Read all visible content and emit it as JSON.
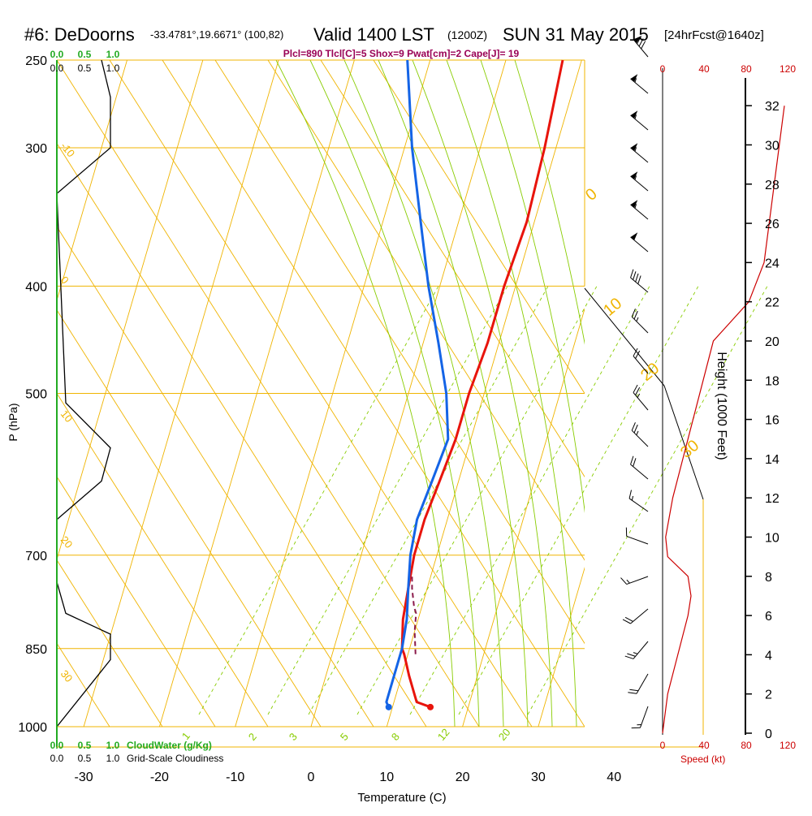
{
  "header": {
    "station": "#6: DeDoorns",
    "coords": "-33.4781°,19.6671° (100,82)",
    "valid_main": "Valid 1400 LST",
    "valid_utc": "(1200Z)",
    "valid_date": "SUN 31 May 2015",
    "forecast": "[24hrFcst@1640z]"
  },
  "indices": "Plcl=890 Tlcl[C]=5 Shox=9 Pwat[cm]=2 Cape[J]= 19",
  "colors": {
    "isobar": "#f0b400",
    "skewt": "#f0b400",
    "dry_adiabat": "#f0b400",
    "moist_adiabat": "#88cc00",
    "mixing_ratio": "#88cc00",
    "temperature": "#e8140c",
    "dewpoint": "#1464e6",
    "parcel": "#8b1a4a",
    "cloudwater": "#22aa22",
    "speed": "#cc0000",
    "indices": "#990055"
  },
  "chart_data": {
    "type": "line",
    "title": "Skew-T log-P sounding",
    "xlabel": "Temperature (C)",
    "ylabel": "P (hPa)",
    "right_axis_label": "Height (1000 Feet)",
    "x_ticks": [
      "-30",
      "-20",
      "-10",
      "0",
      "10",
      "20",
      "30",
      "40"
    ],
    "pressure_ticks": [
      "250",
      "300",
      "400",
      "500",
      "700",
      "850",
      "1000"
    ],
    "height_ticks": [
      "0",
      "2",
      "4",
      "6",
      "8",
      "10",
      "12",
      "14",
      "16",
      "18",
      "20",
      "22",
      "24",
      "26",
      "28",
      "30",
      "32"
    ],
    "speed_ticks_top": [
      "0",
      "40",
      "80",
      "120"
    ],
    "speed_ticks_bottom": [
      "0",
      "40",
      "80",
      "120"
    ],
    "speed_label": "Speed (kt)",
    "cloudwater_label": "CloudWater (g/Kg)",
    "cloudwater_ticks": [
      "0.0",
      "0.5",
      "1.0"
    ],
    "cloudiness_label": "Grid-Scale Cloudiness",
    "cloudiness_ticks": [
      "0.0",
      "0.5",
      "1.0"
    ],
    "dry_adiabat_labels": [
      "-10",
      "0",
      "10",
      "20",
      "30"
    ],
    "moist_adiabat_labels": [
      "0",
      "10",
      "20",
      "30"
    ],
    "mixing_ratio_labels": [
      "1",
      "2",
      "3",
      "5",
      "8",
      "12",
      "20"
    ],
    "series": [
      {
        "name": "Temperature",
        "points": [
          [
            15,
            960
          ],
          [
            13,
            950
          ],
          [
            11,
            900
          ],
          [
            9.5,
            860
          ],
          [
            9,
            850
          ],
          [
            8,
            800
          ],
          [
            7.5,
            750
          ],
          [
            7,
            700
          ],
          [
            7,
            650
          ],
          [
            7.5,
            600
          ],
          [
            8,
            550
          ],
          [
            8,
            500
          ],
          [
            8.5,
            450
          ],
          [
            8.5,
            400
          ],
          [
            9,
            350
          ],
          [
            8.5,
            300
          ],
          [
            7.5,
            250
          ]
        ]
      },
      {
        "name": "Dewpoint",
        "points": [
          [
            9.5,
            960
          ],
          [
            9,
            950
          ],
          [
            9,
            900
          ],
          [
            9,
            850
          ],
          [
            8.5,
            800
          ],
          [
            7.5,
            750
          ],
          [
            6.5,
            700
          ],
          [
            6,
            650
          ],
          [
            6.5,
            600
          ],
          [
            7,
            550
          ],
          [
            5,
            500
          ],
          [
            2,
            450
          ],
          [
            -1.5,
            400
          ],
          [
            -5,
            350
          ],
          [
            -9,
            300
          ],
          [
            -13,
            250
          ]
        ]
      },
      {
        "name": "Parcel",
        "points": [
          [
            11,
            860
          ],
          [
            10,
            820
          ],
          [
            9.5,
            790
          ],
          [
            9,
            780
          ],
          [
            8,
            750
          ],
          [
            7.5,
            730
          ]
        ]
      }
    ],
    "cloudiness_profile": [
      [
        0,
        1000
      ],
      [
        0.6,
        870
      ],
      [
        0.6,
        825
      ],
      [
        0.1,
        790
      ],
      [
        0,
        740
      ],
      [
        0,
        650
      ],
      [
        0.5,
        600
      ],
      [
        0.6,
        560
      ],
      [
        0.1,
        510
      ],
      [
        0,
        330
      ],
      [
        0.6,
        300
      ],
      [
        0.6,
        270
      ],
      [
        0.5,
        250
      ]
    ],
    "wind_speed_profile": [
      [
        0,
        0
      ],
      [
        5,
        2
      ],
      [
        15,
        4
      ],
      [
        20,
        5
      ],
      [
        25,
        6
      ],
      [
        28,
        7
      ],
      [
        25,
        8
      ],
      [
        5,
        9
      ],
      [
        3,
        10
      ],
      [
        10,
        12
      ],
      [
        20,
        14
      ],
      [
        30,
        16
      ],
      [
        50,
        20
      ],
      [
        85,
        22
      ],
      [
        100,
        24
      ],
      [
        110,
        28
      ],
      [
        120,
        32
      ]
    ]
  }
}
